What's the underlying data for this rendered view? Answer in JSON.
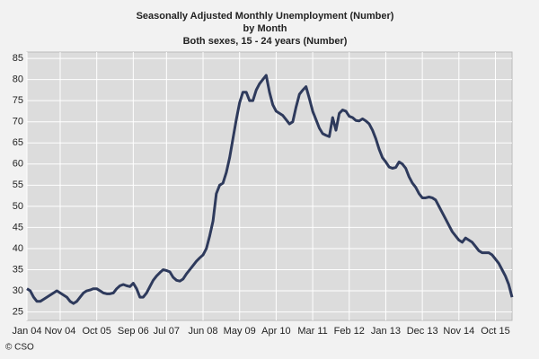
{
  "chart_data": {
    "type": "line",
    "title": "Seasonally Adjusted Monthly Unemployment (Number)",
    "subtitle": [
      "by Month",
      "Both sexes, 15 - 24 years (Number)"
    ],
    "source": "© CSO",
    "categories": [
      "Jan 04",
      null,
      null,
      null,
      null,
      null,
      null,
      null,
      null,
      null,
      "Nov 04",
      null,
      null,
      null,
      null,
      null,
      null,
      null,
      null,
      null,
      null,
      "Oct 05",
      null,
      null,
      null,
      null,
      null,
      null,
      null,
      null,
      null,
      null,
      "Sep 06",
      null,
      null,
      null,
      null,
      null,
      null,
      null,
      null,
      null,
      "Jul 07",
      null,
      null,
      null,
      null,
      null,
      null,
      null,
      null,
      null,
      null,
      "Jun 08",
      null,
      null,
      null,
      null,
      null,
      null,
      null,
      null,
      null,
      null,
      "May 09",
      null,
      null,
      null,
      null,
      null,
      null,
      null,
      null,
      null,
      null,
      "Apr 10",
      null,
      null,
      null,
      null,
      null,
      null,
      null,
      null,
      null,
      null,
      "Mar 11",
      null,
      null,
      null,
      null,
      null,
      null,
      null,
      null,
      null,
      null,
      "Feb 12",
      null,
      null,
      null,
      null,
      null,
      null,
      null,
      null,
      null,
      null,
      "Jan 13",
      null,
      null,
      null,
      null,
      null,
      null,
      null,
      null,
      null,
      null,
      "Dec 13",
      null,
      null,
      null,
      null,
      null,
      null,
      null,
      null,
      null,
      null,
      "Nov 14",
      null,
      null,
      null,
      null,
      null,
      null,
      null,
      null,
      null,
      null,
      "Oct 15",
      null,
      null,
      null,
      null,
      null
    ],
    "series": [
      {
        "name": "Both sexes, 15 - 24 years",
        "color": "#2e3a5c",
        "values": [
          30.5,
          30,
          28.5,
          27.5,
          27.5,
          28,
          28.5,
          29,
          29.5,
          30,
          29.5,
          29,
          28.5,
          27.5,
          27,
          27.5,
          28.5,
          29.5,
          30,
          30.2,
          30.5,
          30.5,
          30,
          29.5,
          29.3,
          29.3,
          29.5,
          30.5,
          31.2,
          31.5,
          31.2,
          31,
          31.8,
          30.5,
          28.5,
          28.5,
          29.5,
          31,
          32.5,
          33.5,
          34.3,
          35,
          34.8,
          34.5,
          33.2,
          32.5,
          32.3,
          32.8,
          34,
          35,
          36,
          37,
          37.8,
          38.5,
          40,
          43,
          46.5,
          53,
          55,
          55.5,
          58,
          61.5,
          66,
          70.5,
          74.5,
          77,
          77,
          75,
          75,
          77.5,
          79,
          80,
          81,
          77,
          74,
          72.5,
          72,
          71.5,
          70.5,
          69.5,
          70,
          73.5,
          76.5,
          77.5,
          78.3,
          75.5,
          72.5,
          70.5,
          68.5,
          67.2,
          66.8,
          66.5,
          71,
          68,
          72,
          72.8,
          72.5,
          71.3,
          71,
          70.3,
          70.2,
          70.7,
          70.2,
          69.5,
          68,
          66,
          63.5,
          61.5,
          60.5,
          59.3,
          59,
          59.2,
          60.5,
          60,
          59,
          57,
          55.5,
          54.5,
          53,
          52,
          52,
          52.2,
          52,
          51.5,
          50,
          48.5,
          47,
          45.5,
          44,
          43,
          42,
          41.5,
          42.5,
          42,
          41.5,
          40.5,
          39.5,
          39,
          39,
          39,
          38.5,
          37.5,
          36.5,
          35,
          33.5,
          31.5,
          28.5
        ]
      }
    ],
    "ylim": [
      23,
      86.5
    ],
    "yticks": [
      25,
      30,
      35,
      40,
      45,
      50,
      55,
      60,
      65,
      70,
      75,
      80,
      85
    ],
    "grid": true
  }
}
